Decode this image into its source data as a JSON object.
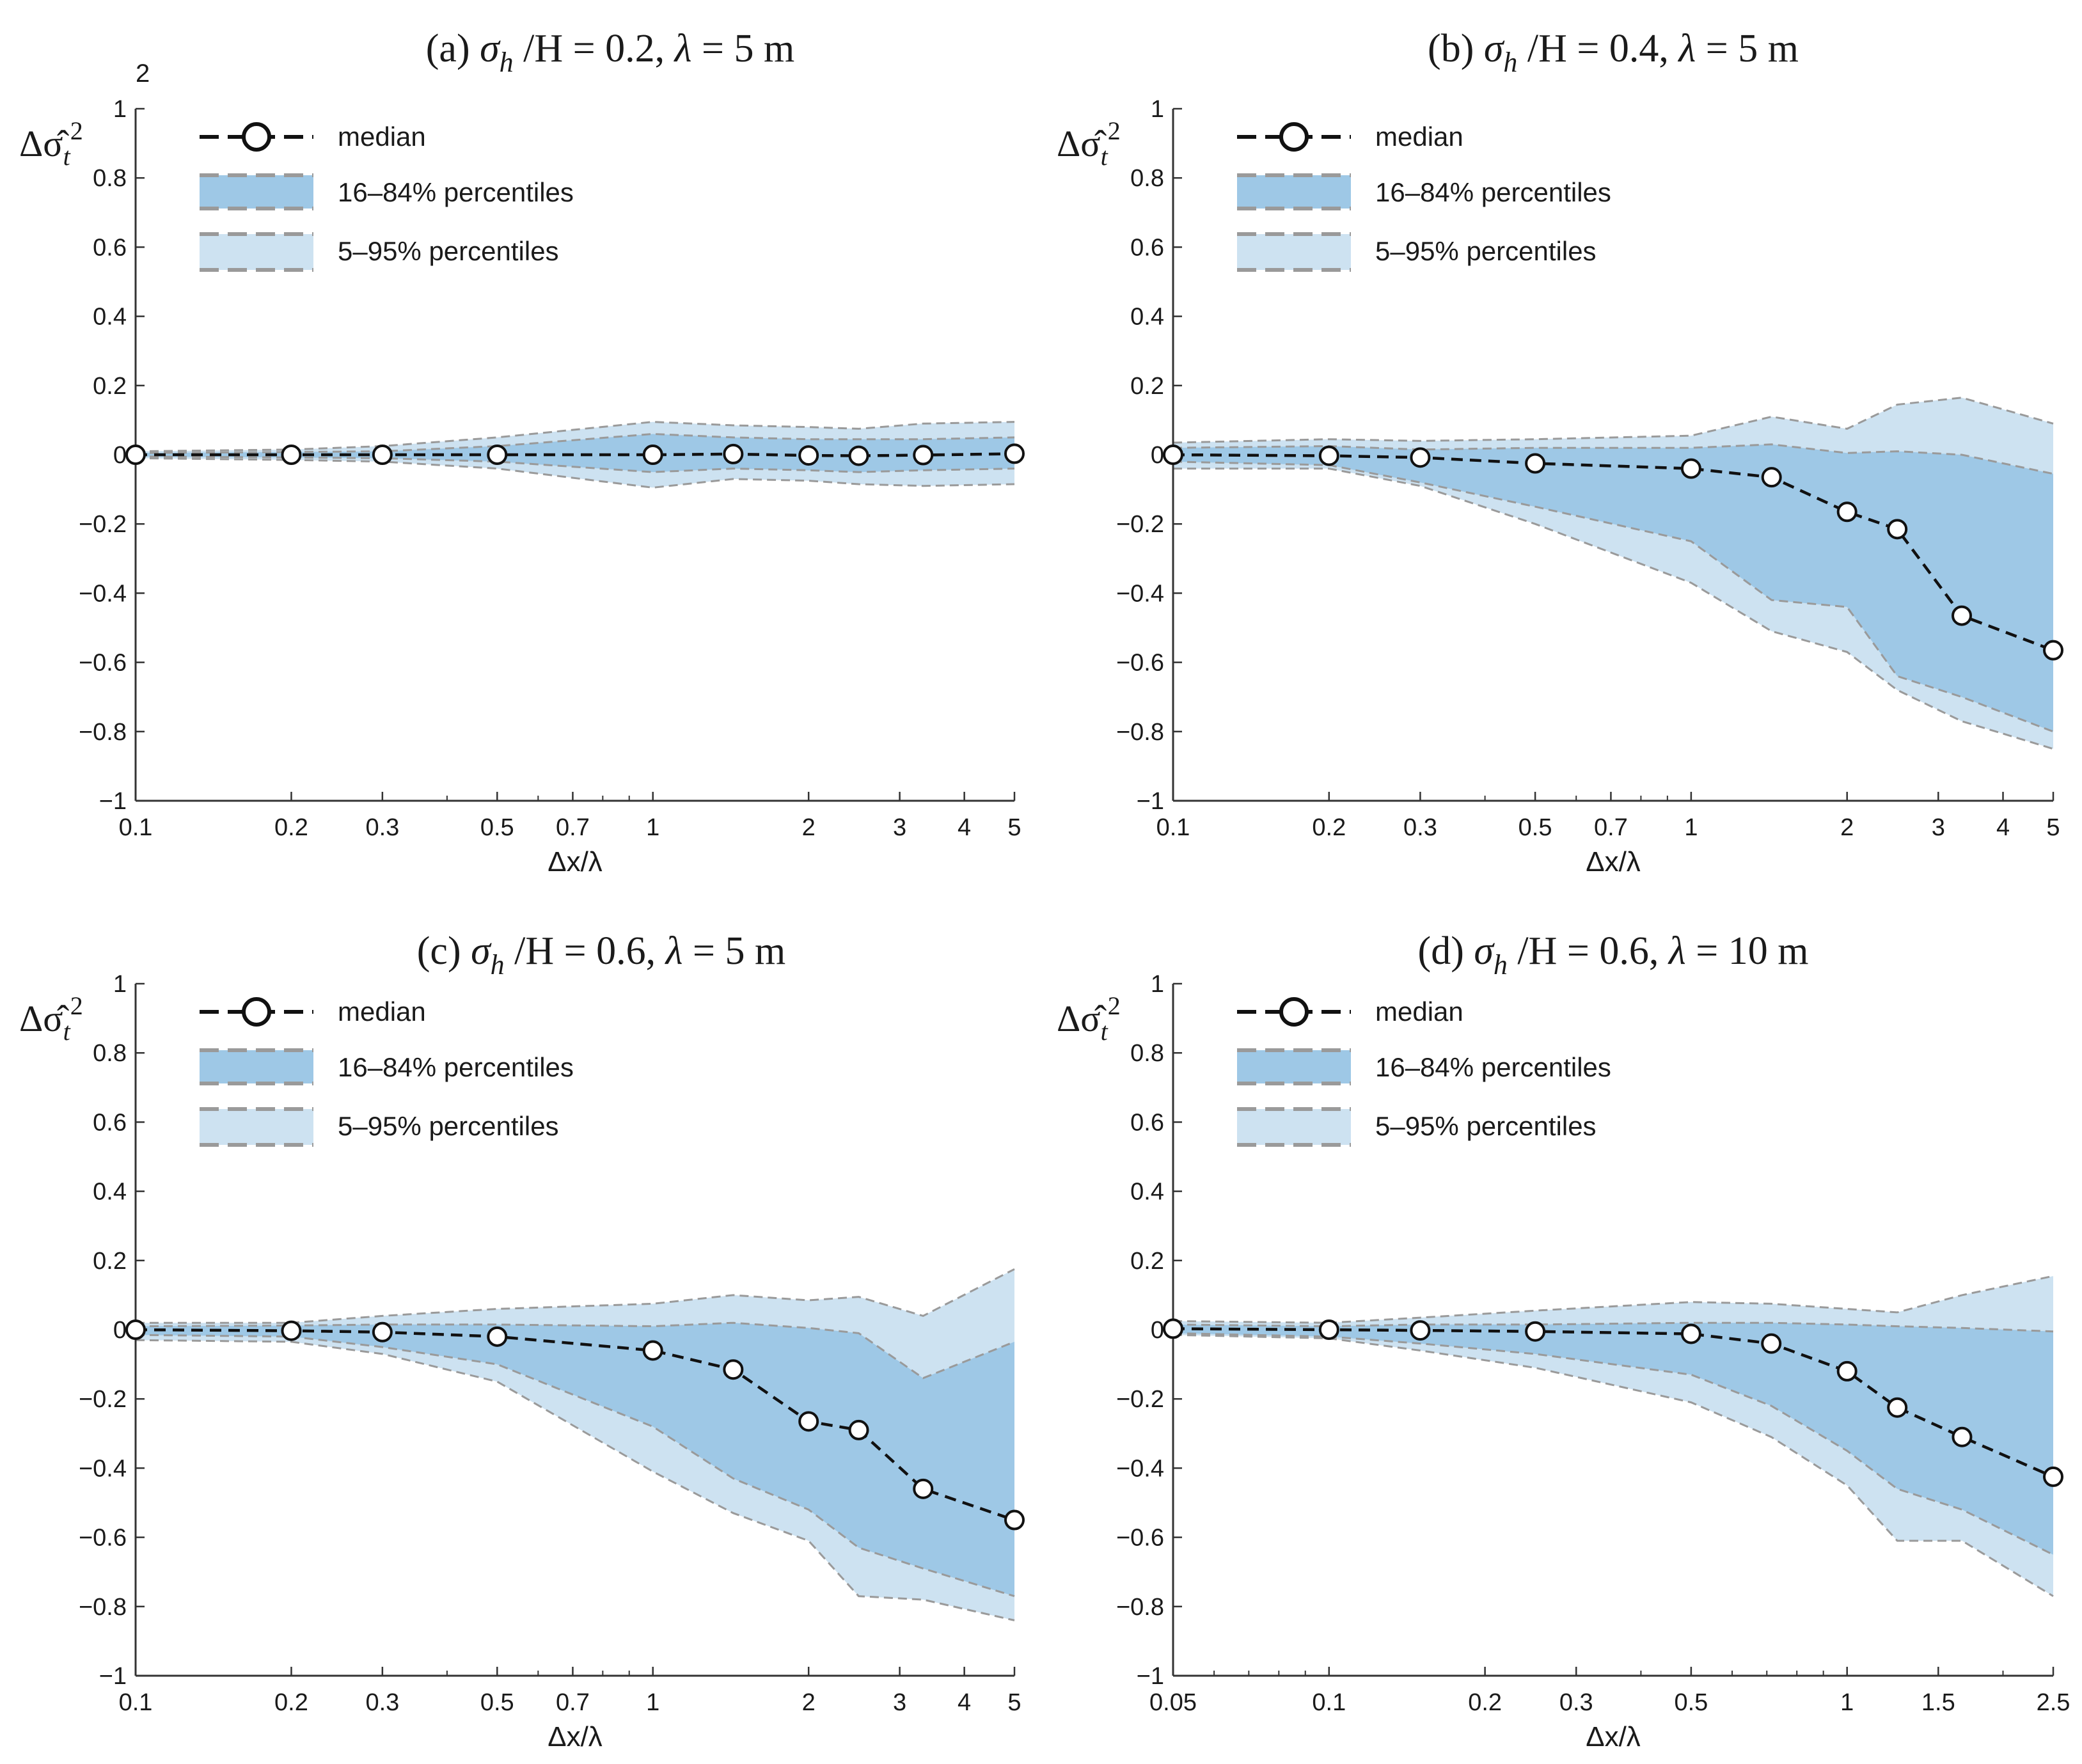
{
  "figure_note": "2",
  "chart_data": [
    {
      "id": "a",
      "type": "line",
      "title_prefix": "(a)",
      "title_sigma": "σ",
      "title_sub": "h",
      "title_rest": " /H = 0.2, ",
      "title_lambda": "λ",
      "title_end": " = 5 m",
      "ylabel_main": "Δσ̂",
      "ylabel_sub": "t",
      "ylabel_sup": "2",
      "xlabel": "Δx/λ",
      "xscale": "log",
      "xlim": [
        0.1,
        5
      ],
      "ylim": [
        -1,
        1
      ],
      "xticks": [
        0.1,
        0.2,
        0.3,
        0.5,
        0.7,
        1,
        2,
        3,
        4,
        5
      ],
      "xticklabels": [
        "0.1",
        "0.2",
        "0.3",
        "0.5",
        "0.7",
        "1",
        "2",
        "3",
        "4",
        "5"
      ],
      "yticks": [
        -1,
        -0.8,
        -0.6,
        -0.4,
        -0.2,
        0,
        0.2,
        0.4,
        0.6,
        0.8,
        1
      ],
      "yticklabels": [
        "−1",
        "−0.8",
        "−0.6",
        "−0.4",
        "−0.2",
        "0",
        "0.2",
        "0.4",
        "0.6",
        "0.8",
        "1"
      ],
      "x": [
        0.1,
        0.2,
        0.3,
        0.5,
        1,
        1.43,
        2,
        2.5,
        3.33,
        5
      ],
      "series": [
        {
          "name": "median",
          "values": [
            0.0,
            0.0,
            0.0,
            0.0,
            0.0,
            0.002,
            -0.002,
            -0.003,
            -0.001,
            0.003
          ]
        },
        {
          "name": "p16",
          "values": [
            -0.005,
            -0.008,
            -0.01,
            -0.02,
            -0.05,
            -0.04,
            -0.045,
            -0.05,
            -0.045,
            -0.04
          ]
        },
        {
          "name": "p84",
          "values": [
            0.005,
            0.008,
            0.01,
            0.025,
            0.06,
            0.05,
            0.045,
            0.045,
            0.045,
            0.05
          ]
        },
        {
          "name": "p5",
          "values": [
            -0.01,
            -0.015,
            -0.02,
            -0.04,
            -0.095,
            -0.07,
            -0.075,
            -0.085,
            -0.09,
            -0.085
          ]
        },
        {
          "name": "p95",
          "values": [
            0.01,
            0.015,
            0.025,
            0.05,
            0.095,
            0.085,
            0.08,
            0.075,
            0.09,
            0.095
          ]
        }
      ]
    },
    {
      "id": "b",
      "type": "line",
      "title_prefix": "(b)",
      "title_sigma": "σ",
      "title_sub": "h",
      "title_rest": " /H = 0.4, ",
      "title_lambda": "λ",
      "title_end": " = 5 m",
      "ylabel_main": "Δσ̂",
      "ylabel_sub": "t",
      "ylabel_sup": "2",
      "xlabel": "Δx/λ",
      "xscale": "log",
      "xlim": [
        0.1,
        5
      ],
      "ylim": [
        -1,
        1
      ],
      "xticks": [
        0.1,
        0.2,
        0.3,
        0.5,
        0.7,
        1,
        2,
        3,
        4,
        5
      ],
      "xticklabels": [
        "0.1",
        "0.2",
        "0.3",
        "0.5",
        "0.7",
        "1",
        "2",
        "3",
        "4",
        "5"
      ],
      "yticks": [
        -1,
        -0.8,
        -0.6,
        -0.4,
        -0.2,
        0,
        0.2,
        0.4,
        0.6,
        0.8,
        1
      ],
      "yticklabels": [
        "−1",
        "−0.8",
        "−0.6",
        "−0.4",
        "−0.2",
        "0",
        "0.2",
        "0.4",
        "0.6",
        "0.8",
        "1"
      ],
      "x": [
        0.1,
        0.2,
        0.3,
        0.5,
        1,
        1.43,
        2,
        2.5,
        3.33,
        5
      ],
      "series": [
        {
          "name": "median",
          "values": [
            0.0,
            -0.003,
            -0.008,
            -0.025,
            -0.04,
            -0.065,
            -0.165,
            -0.215,
            -0.465,
            -0.565
          ]
        },
        {
          "name": "p16",
          "values": [
            -0.02,
            -0.03,
            -0.08,
            -0.15,
            -0.25,
            -0.42,
            -0.44,
            -0.64,
            -0.7,
            -0.8
          ]
        },
        {
          "name": "p84",
          "values": [
            0.02,
            0.025,
            0.015,
            0.02,
            0.02,
            0.03,
            0.005,
            0.01,
            0.0,
            -0.055
          ]
        },
        {
          "name": "p5",
          "values": [
            -0.04,
            -0.04,
            -0.09,
            -0.2,
            -0.37,
            -0.51,
            -0.57,
            -0.68,
            -0.77,
            -0.85
          ]
        },
        {
          "name": "p95",
          "values": [
            0.035,
            0.045,
            0.04,
            0.045,
            0.055,
            0.11,
            0.075,
            0.145,
            0.165,
            0.09
          ]
        }
      ]
    },
    {
      "id": "c",
      "type": "line",
      "title_prefix": "(c)",
      "title_sigma": "σ",
      "title_sub": "h",
      "title_rest": " /H = 0.6, ",
      "title_lambda": "λ",
      "title_end": " = 5 m",
      "ylabel_main": "Δσ̂",
      "ylabel_sub": "t",
      "ylabel_sup": "2",
      "xlabel": "Δx/λ",
      "xscale": "log",
      "xlim": [
        0.1,
        5
      ],
      "ylim": [
        -1,
        1
      ],
      "xticks": [
        0.1,
        0.2,
        0.3,
        0.5,
        0.7,
        1,
        2,
        3,
        4,
        5
      ],
      "xticklabels": [
        "0.1",
        "0.2",
        "0.3",
        "0.5",
        "0.7",
        "1",
        "2",
        "3",
        "4",
        "5"
      ],
      "yticks": [
        -1,
        -0.8,
        -0.6,
        -0.4,
        -0.2,
        0,
        0.2,
        0.4,
        0.6,
        0.8,
        1
      ],
      "yticklabels": [
        "−1",
        "−0.8",
        "−0.6",
        "−0.4",
        "−0.2",
        "0",
        "0.2",
        "0.4",
        "0.6",
        "0.8",
        "1"
      ],
      "x": [
        0.1,
        0.2,
        0.3,
        0.5,
        1,
        1.43,
        2,
        2.5,
        3.33,
        5
      ],
      "series": [
        {
          "name": "median",
          "values": [
            0.0,
            -0.003,
            -0.007,
            -0.02,
            -0.06,
            -0.115,
            -0.265,
            -0.29,
            -0.46,
            -0.55
          ]
        },
        {
          "name": "p16",
          "values": [
            -0.015,
            -0.02,
            -0.05,
            -0.1,
            -0.28,
            -0.43,
            -0.52,
            -0.63,
            -0.69,
            -0.77
          ]
        },
        {
          "name": "p84",
          "values": [
            0.01,
            0.012,
            0.015,
            0.015,
            0.01,
            0.02,
            0.005,
            -0.01,
            -0.14,
            -0.035
          ]
        },
        {
          "name": "p5",
          "values": [
            -0.03,
            -0.035,
            -0.07,
            -0.15,
            -0.41,
            -0.53,
            -0.61,
            -0.77,
            -0.78,
            -0.84
          ]
        },
        {
          "name": "p95",
          "values": [
            0.02,
            0.02,
            0.04,
            0.06,
            0.075,
            0.1,
            0.085,
            0.095,
            0.04,
            0.175
          ]
        }
      ]
    },
    {
      "id": "d",
      "type": "line",
      "title_prefix": "(d)",
      "title_sigma": "σ",
      "title_sub": "h",
      "title_rest": " /H = 0.6, ",
      "title_lambda": "λ",
      "title_end": " = 10 m",
      "ylabel_main": "Δσ̂",
      "ylabel_sub": "t",
      "ylabel_sup": "2",
      "xlabel": "Δx/λ",
      "xscale": "log",
      "xlim": [
        0.05,
        2.5
      ],
      "ylim": [
        -1,
        1
      ],
      "xticks": [
        0.05,
        0.1,
        0.2,
        0.3,
        0.5,
        1,
        1.5,
        2.5
      ],
      "xticklabels": [
        "0.05",
        "0.1",
        "0.2",
        "0.3",
        "0.5",
        "1",
        "1.5",
        "2.5"
      ],
      "yticks": [
        -1,
        -0.8,
        -0.6,
        -0.4,
        -0.2,
        0,
        0.2,
        0.4,
        0.6,
        0.8,
        1
      ],
      "yticklabels": [
        "−1",
        "−0.8",
        "−0.6",
        "−0.4",
        "−0.2",
        "0",
        "0.2",
        "0.4",
        "0.6",
        "0.8",
        "1"
      ],
      "x": [
        0.05,
        0.1,
        0.15,
        0.25,
        0.5,
        0.714,
        1,
        1.25,
        1.667,
        2.5
      ],
      "series": [
        {
          "name": "median",
          "values": [
            0.003,
            0.0,
            -0.002,
            -0.005,
            -0.012,
            -0.04,
            -0.12,
            -0.225,
            -0.31,
            -0.425
          ]
        },
        {
          "name": "p16",
          "values": [
            -0.01,
            -0.02,
            -0.04,
            -0.07,
            -0.13,
            -0.22,
            -0.35,
            -0.46,
            -0.52,
            -0.65
          ]
        },
        {
          "name": "p84",
          "values": [
            0.015,
            0.01,
            0.015,
            0.015,
            0.02,
            0.02,
            0.015,
            0.01,
            0.005,
            -0.005
          ]
        },
        {
          "name": "p5",
          "values": [
            -0.015,
            -0.025,
            -0.06,
            -0.11,
            -0.21,
            -0.31,
            -0.45,
            -0.61,
            -0.61,
            -0.77
          ]
        },
        {
          "name": "p95",
          "values": [
            0.025,
            0.02,
            0.035,
            0.055,
            0.08,
            0.075,
            0.06,
            0.05,
            0.1,
            0.155
          ]
        }
      ]
    }
  ],
  "legend": {
    "median": "median",
    "band_inner": "16–84% percentiles",
    "band_outer": "5–95% percentiles"
  },
  "colors": {
    "band_inner": "#9ec8e6",
    "band_outer": "#cde2f1",
    "band_edge": "#9a9a9a",
    "median_line": "#111111",
    "axis": "#333333"
  }
}
